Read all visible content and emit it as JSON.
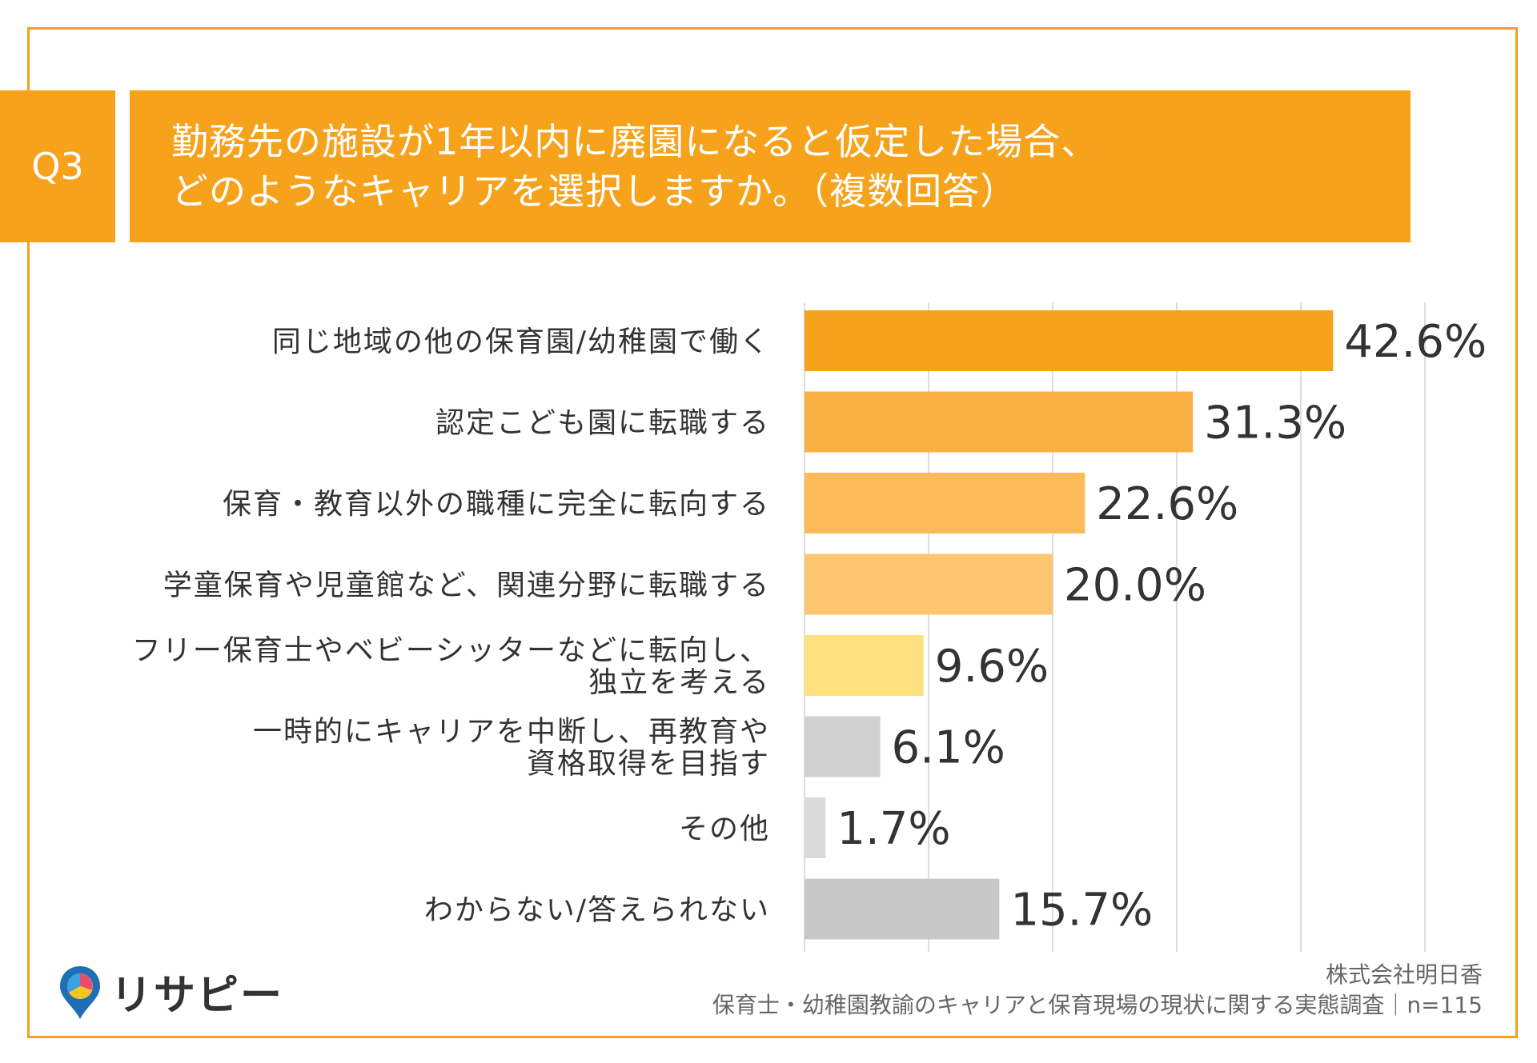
{
  "header": {
    "question_no": "Q3",
    "title_lines": [
      "勤務先の施設が1年以内に廃園になると仮定した場合、",
      "どのようなキャリアを選択しますか。（複数回答）"
    ]
  },
  "colors": {
    "accent": "#f7a21b",
    "frame": "#f0a01e",
    "bar_colors": [
      "#f7a21b",
      "#fbb044",
      "#fcba58",
      "#fdc56f",
      "#ffe07f",
      "#d0d0d0",
      "#dadada",
      "#c8c8c8"
    ],
    "grid": "#dddddd"
  },
  "chart_data": {
    "type": "bar",
    "orientation": "horizontal",
    "categories": [
      [
        "同じ地域の他の保育園/幼稚園で働く"
      ],
      [
        "認定こども園に転職する"
      ],
      [
        "保育・教育以外の職種に完全に転向する"
      ],
      [
        "学童保育や児童館など、関連分野に転職する"
      ],
      [
        "フリー保育士やベビーシッターなどに転向し、",
        "独立を考える"
      ],
      [
        "一時的にキャリアを中断し、再教育や",
        "資格取得を目指す"
      ],
      [
        "その他"
      ],
      [
        "わからない/答えられない"
      ]
    ],
    "values": [
      42.6,
      31.3,
      22.6,
      20.0,
      9.6,
      6.1,
      1.7,
      15.7
    ],
    "value_labels": [
      "42.6%",
      "31.3%",
      "22.6%",
      "20.0%",
      "9.6%",
      "6.1%",
      "1.7%",
      "15.7%"
    ],
    "xlim": [
      0,
      50
    ],
    "grid_step": 10,
    "grid": true
  },
  "footer": {
    "company": "株式会社明日香",
    "survey": "保育士・幼稚園教諭のキャリアと保育現場の現状に関する実態調査｜n=115"
  },
  "logo": {
    "text": "リサピー",
    "icon": "pin-logo-icon"
  }
}
